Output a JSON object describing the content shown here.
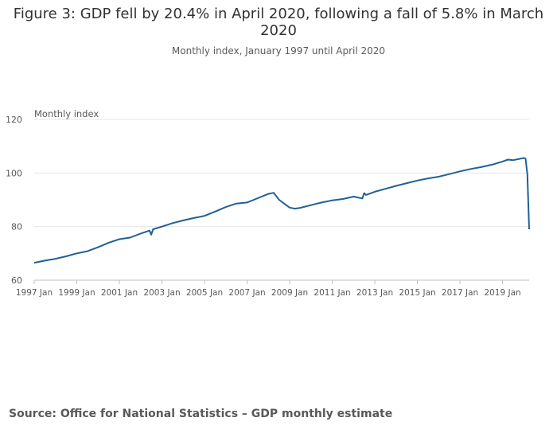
{
  "header": {
    "title": "Figure 3: GDP fell by 20.4% in April 2020, following a fall of 5.8% in March 2020",
    "subtitle": "Monthly index, January 1997 until April 2020"
  },
  "footer": {
    "source": "Source: Office for National Statistics – GDP monthly estimate"
  },
  "chart_data": {
    "type": "line",
    "ylabel": "Monthly index",
    "ylim": [
      60,
      120
    ],
    "yticks": [
      "60",
      "80",
      "100",
      "120"
    ],
    "xlim": [
      "1997-01",
      "2020-04"
    ],
    "xticks": [
      "1997 Jan",
      "1999 Jan",
      "2001 Jan",
      "2003 Jan",
      "2005 Jan",
      "2007 Jan",
      "2009 Jan",
      "2011 Jan",
      "2013 Jan",
      "2015 Jan",
      "2017 Jan",
      "2019 Jan"
    ],
    "grid": "horizontal",
    "line_color": "#206095",
    "series": [
      {
        "x": [
          "1997-01",
          "1997-07",
          "1998-01",
          "1998-07",
          "1999-01",
          "1999-07",
          "2000-01",
          "2000-07",
          "2001-01",
          "2001-07",
          "2002-01",
          "2002-06",
          "2002-07",
          "2002-08",
          "2003-01",
          "2003-07",
          "2004-01",
          "2004-07",
          "2005-01",
          "2005-07",
          "2006-01",
          "2006-07",
          "2007-01",
          "2007-07",
          "2008-01",
          "2008-04",
          "2008-07",
          "2009-01",
          "2009-04",
          "2009-07",
          "2010-01",
          "2010-07",
          "2011-01",
          "2011-07",
          "2012-01",
          "2012-06",
          "2012-07",
          "2012-08",
          "2013-01",
          "2013-07",
          "2014-01",
          "2014-07",
          "2015-01",
          "2015-07",
          "2016-01",
          "2016-07",
          "2017-01",
          "2017-07",
          "2018-01",
          "2018-07",
          "2019-01",
          "2019-04",
          "2019-07",
          "2020-01",
          "2020-02",
          "2020-03",
          "2020-04"
        ],
        "y": [
          66.5,
          67.3,
          68.0,
          68.9,
          70.0,
          70.8,
          72.3,
          74.0,
          75.3,
          75.9,
          77.4,
          78.5,
          77.0,
          79.0,
          80.0,
          81.3,
          82.3,
          83.2,
          84.0,
          85.6,
          87.3,
          88.6,
          89.0,
          90.6,
          92.2,
          92.6,
          90.0,
          87.1,
          86.7,
          87.0,
          88.0,
          89.0,
          89.8,
          90.3,
          91.2,
          90.5,
          92.5,
          91.8,
          93.0,
          94.1,
          95.2,
          96.2,
          97.2,
          98.0,
          98.6,
          99.6,
          100.6,
          101.5,
          102.2,
          103.1,
          104.3,
          105.0,
          104.8,
          105.6,
          105.4,
          99.3,
          79.0
        ]
      }
    ]
  }
}
